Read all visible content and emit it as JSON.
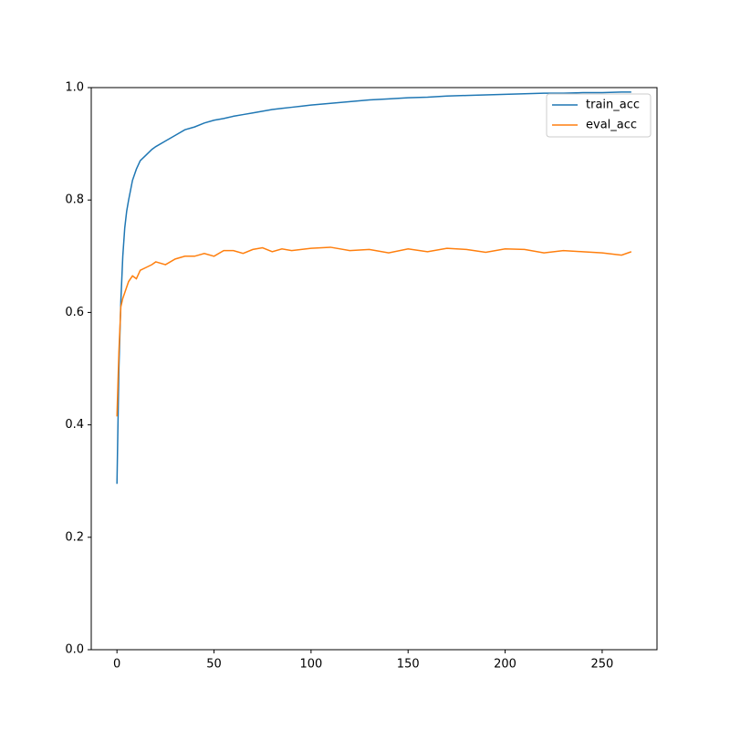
{
  "chart_data": {
    "type": "line",
    "x": [
      0,
      1,
      2,
      3,
      4,
      5,
      6,
      8,
      10,
      12,
      15,
      18,
      20,
      25,
      30,
      35,
      40,
      45,
      50,
      55,
      60,
      65,
      70,
      75,
      80,
      85,
      90,
      95,
      100,
      110,
      120,
      130,
      140,
      150,
      160,
      170,
      180,
      190,
      200,
      210,
      220,
      230,
      240,
      250,
      260,
      265
    ],
    "series": [
      {
        "name": "train_acc",
        "color": "#1f77b4",
        "values": [
          0.295,
          0.5,
          0.62,
          0.7,
          0.75,
          0.78,
          0.8,
          0.835,
          0.855,
          0.87,
          0.88,
          0.89,
          0.895,
          0.905,
          0.915,
          0.925,
          0.93,
          0.937,
          0.942,
          0.945,
          0.949,
          0.952,
          0.955,
          0.958,
          0.961,
          0.963,
          0.965,
          0.967,
          0.969,
          0.972,
          0.975,
          0.978,
          0.98,
          0.982,
          0.983,
          0.985,
          0.986,
          0.987,
          0.988,
          0.989,
          0.99,
          0.99,
          0.991,
          0.991,
          0.992,
          0.992
        ]
      },
      {
        "name": "eval_acc",
        "color": "#ff7f0e",
        "values": [
          0.415,
          0.53,
          0.61,
          0.625,
          0.635,
          0.645,
          0.655,
          0.665,
          0.66,
          0.675,
          0.68,
          0.685,
          0.69,
          0.685,
          0.695,
          0.7,
          0.7,
          0.705,
          0.7,
          0.71,
          0.71,
          0.705,
          0.712,
          0.715,
          0.708,
          0.713,
          0.71,
          0.712,
          0.714,
          0.716,
          0.71,
          0.712,
          0.706,
          0.713,
          0.708,
          0.714,
          0.712,
          0.707,
          0.713,
          0.712,
          0.706,
          0.71,
          0.708,
          0.706,
          0.702,
          0.708
        ]
      }
    ],
    "xlim": [
      -13.25,
      278.25
    ],
    "xticks": [
      0,
      50,
      100,
      150,
      200,
      250
    ],
    "ylim": [
      0,
      1
    ],
    "yticks": [
      {
        "value": 0,
        "label": "0.0"
      },
      0.2,
      0.4,
      0.6,
      0.8,
      {
        "value": 1,
        "label": "1.0"
      }
    ],
    "grid": false,
    "legend": "upper-right"
  }
}
